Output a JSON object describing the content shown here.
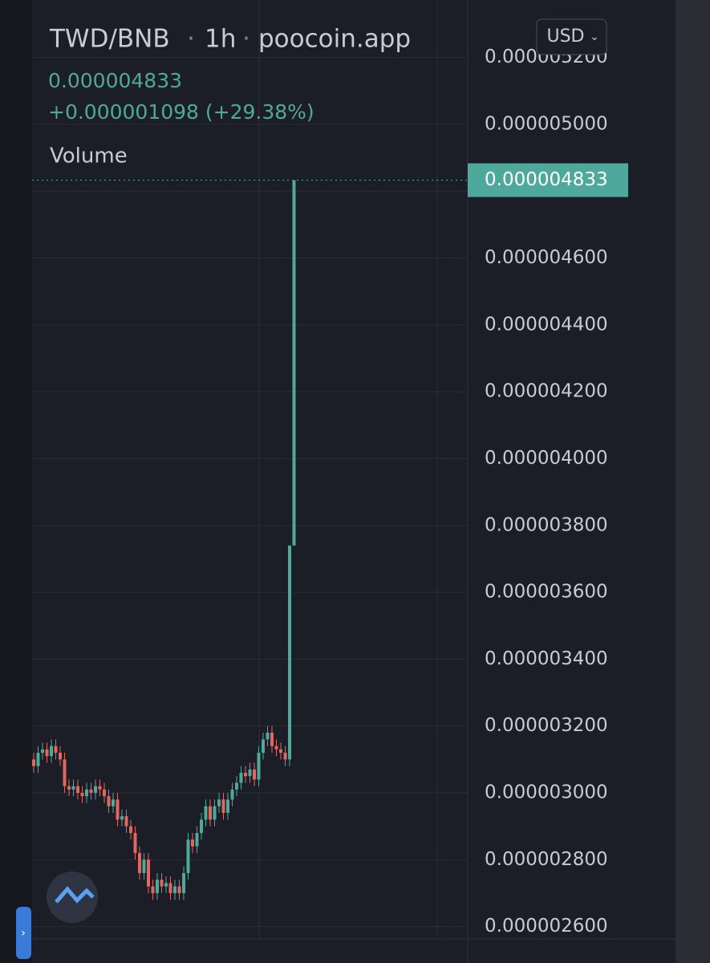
{
  "header": {
    "pair": "TWD/BNB",
    "interval": "1h",
    "source": "poocoin.app",
    "currency": "USD",
    "price": "0.000004833",
    "change": "+0.000001098 (+29.38%)",
    "volume_label": "Volume",
    "price_tag": "0.000004833"
  },
  "chart_data": {
    "type": "candlestick",
    "up_color": "#4fa89c",
    "down_color": "#e2675f",
    "ylim": [
      2.563e-06,
      5.372e-06
    ],
    "yticks": [
      {
        "value": 2.6e-06,
        "label": "0.000002600"
      },
      {
        "value": 2.8e-06,
        "label": "0.000002800"
      },
      {
        "value": 3e-06,
        "label": "0.000003000"
      },
      {
        "value": 3.2e-06,
        "label": "0.000003200"
      },
      {
        "value": 3.4e-06,
        "label": "0.000003400"
      },
      {
        "value": 3.6e-06,
        "label": "0.000003600"
      },
      {
        "value": 3.8e-06,
        "label": "0.000003800"
      },
      {
        "value": 4e-06,
        "label": "0.000004000"
      },
      {
        "value": 4.2e-06,
        "label": "0.000004200"
      },
      {
        "value": 4.4e-06,
        "label": "0.000004400"
      },
      {
        "value": 4.6e-06,
        "label": "0.000004600"
      },
      {
        "value": 4.8e-06,
        "label": "0.000004800"
      },
      {
        "value": 5e-06,
        "label": "0.000005000"
      },
      {
        "value": 5.2e-06,
        "label": "0.000005200"
      }
    ],
    "grid": true,
    "open": [
      3.1e-06,
      3.08e-06,
      3.12e-06,
      3.13e-06,
      3.11e-06,
      3.14e-06,
      3.12e-06,
      3.1e-06,
      3.02e-06,
      3.01e-06,
      3.02e-06,
      3e-06,
      2.99e-06,
      3.01e-06,
      3e-06,
      3.02e-06,
      3.01e-06,
      2.99e-06,
      2.96e-06,
      2.98e-06,
      2.92e-06,
      2.93e-06,
      2.9e-06,
      2.88e-06,
      2.82e-06,
      2.76e-06,
      2.8e-06,
      2.72e-06,
      2.7e-06,
      2.74e-06,
      2.72e-06,
      2.73e-06,
      2.7e-06,
      2.72e-06,
      2.7e-06,
      2.76e-06,
      2.86e-06,
      2.84e-06,
      2.88e-06,
      2.92e-06,
      2.96e-06,
      2.92e-06,
      2.96e-06,
      2.98e-06,
      2.94e-06,
      2.98e-06,
      3.01e-06,
      3.03e-06,
      3.06e-06,
      3.05e-06,
      3.07e-06,
      3.04e-06,
      3.12e-06,
      3.16e-06,
      3.18e-06,
      3.14e-06,
      3.13e-06,
      3.12e-06,
      3.1e-06,
      3.74e-06
    ],
    "high": [
      3.12e-06,
      3.14e-06,
      3.15e-06,
      3.15e-06,
      3.16e-06,
      3.16e-06,
      3.14e-06,
      3.12e-06,
      3.04e-06,
      3.04e-06,
      3.04e-06,
      3.02e-06,
      3.03e-06,
      3.03e-06,
      3.04e-06,
      3.04e-06,
      3.03e-06,
      3.01e-06,
      3e-06,
      3e-06,
      2.95e-06,
      2.95e-06,
      2.92e-06,
      2.9e-06,
      2.84e-06,
      2.82e-06,
      2.82e-06,
      2.74e-06,
      2.76e-06,
      2.76e-06,
      2.75e-06,
      2.75e-06,
      2.74e-06,
      2.74e-06,
      2.78e-06,
      2.88e-06,
      2.88e-06,
      2.9e-06,
      2.94e-06,
      2.98e-06,
      2.98e-06,
      2.98e-06,
      3e-06,
      3e-06,
      3e-06,
      3.03e-06,
      3.05e-06,
      3.08e-06,
      3.08e-06,
      3.09e-06,
      3.09e-06,
      3.14e-06,
      3.18e-06,
      3.2e-06,
      3.2e-06,
      3.16e-06,
      3.15e-06,
      3.14e-06,
      3.74e-06,
      4.833e-06
    ],
    "low": [
      3.06e-06,
      3.06e-06,
      3.1e-06,
      3.09e-06,
      3.09e-06,
      3.1e-06,
      3.08e-06,
      3e-06,
      2.99e-06,
      2.99e-06,
      2.98e-06,
      2.97e-06,
      2.97e-06,
      2.98e-06,
      2.98e-06,
      2.99e-06,
      2.97e-06,
      2.94e-06,
      2.94e-06,
      2.9e-06,
      2.9e-06,
      2.88e-06,
      2.86e-06,
      2.8e-06,
      2.74e-06,
      2.74e-06,
      2.7e-06,
      2.68e-06,
      2.68e-06,
      2.7e-06,
      2.7e-06,
      2.68e-06,
      2.68e-06,
      2.68e-06,
      2.68e-06,
      2.74e-06,
      2.82e-06,
      2.82e-06,
      2.86e-06,
      2.9e-06,
      2.9e-06,
      2.9e-06,
      2.94e-06,
      2.92e-06,
      2.92e-06,
      2.96e-06,
      2.99e-06,
      3.01e-06,
      3.03e-06,
      3.03e-06,
      3.02e-06,
      3.02e-06,
      3.1e-06,
      3.14e-06,
      3.12e-06,
      3.11e-06,
      3.1e-06,
      3.08e-06,
      3.08e-06,
      3.74e-06
    ],
    "close": [
      3.08e-06,
      3.12e-06,
      3.13e-06,
      3.11e-06,
      3.14e-06,
      3.12e-06,
      3.1e-06,
      3.02e-06,
      3.01e-06,
      3.02e-06,
      3e-06,
      2.99e-06,
      3.01e-06,
      3e-06,
      3.02e-06,
      3.01e-06,
      2.99e-06,
      2.96e-06,
      2.98e-06,
      2.92e-06,
      2.93e-06,
      2.9e-06,
      2.88e-06,
      2.82e-06,
      2.76e-06,
      2.8e-06,
      2.72e-06,
      2.7e-06,
      2.74e-06,
      2.72e-06,
      2.73e-06,
      2.7e-06,
      2.72e-06,
      2.7e-06,
      2.76e-06,
      2.86e-06,
      2.84e-06,
      2.88e-06,
      2.92e-06,
      2.96e-06,
      2.92e-06,
      2.96e-06,
      2.98e-06,
      2.94e-06,
      2.98e-06,
      3.01e-06,
      3.03e-06,
      3.06e-06,
      3.05e-06,
      3.07e-06,
      3.04e-06,
      3.12e-06,
      3.16e-06,
      3.18e-06,
      3.14e-06,
      3.13e-06,
      3.12e-06,
      3.1e-06,
      3.74e-06,
      4.833e-06
    ]
  }
}
